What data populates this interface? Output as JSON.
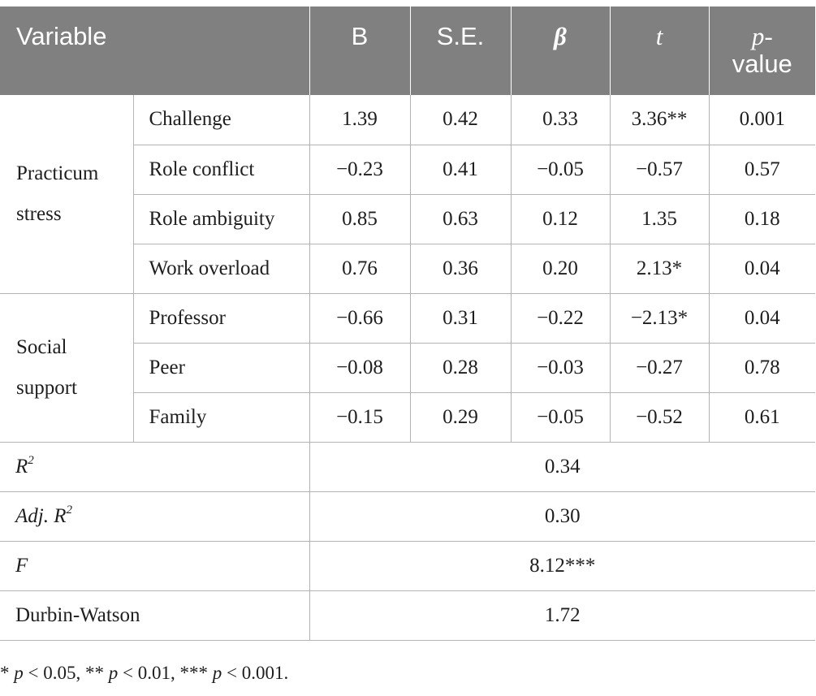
{
  "headers": {
    "variable": "Variable",
    "b": "B",
    "se": "S.E.",
    "beta": "β",
    "t": "t",
    "p_line1": "p-",
    "p_line2": "value"
  },
  "groups": [
    {
      "name_line1": "Practicum",
      "name_line2": "stress"
    },
    {
      "name_line1": "Social",
      "name_line2": "support"
    }
  ],
  "rows": [
    {
      "variable": "Challenge",
      "b": "1.39",
      "se": "0.42",
      "beta": "0.33",
      "t": "3.36**",
      "p": "0.001"
    },
    {
      "variable": "Role conflict",
      "b": "−0.23",
      "se": "0.41",
      "beta": "−0.05",
      "t": "−0.57",
      "p": "0.57"
    },
    {
      "variable": "Role ambiguity",
      "b": "0.85",
      "se": "0.63",
      "beta": "0.12",
      "t": "1.35",
      "p": "0.18"
    },
    {
      "variable": "Work overload",
      "b": "0.76",
      "se": "0.36",
      "beta": "0.20",
      "t": "2.13*",
      "p": "0.04"
    },
    {
      "variable": "Professor",
      "b": "−0.66",
      "se": "0.31",
      "beta": "−0.22",
      "t": "−2.13*",
      "p": "0.04"
    },
    {
      "variable": "Peer",
      "b": "−0.08",
      "se": "0.28",
      "beta": "−0.03",
      "t": "−0.27",
      "p": "0.78"
    },
    {
      "variable": "Family",
      "b": "−0.15",
      "se": "0.29",
      "beta": "−0.05",
      "t": "−0.52",
      "p": "0.61"
    }
  ],
  "stats": {
    "r2_label_base": "R",
    "r2_label_sup": "2",
    "r2_value": "0.34",
    "adj_r2_label_base": "Adj. R",
    "adj_r2_label_sup": "2",
    "adj_r2_value": "0.30",
    "f_label": "F",
    "f_value": "8.12***",
    "dw_label": "Durbin-Watson",
    "dw_value": "1.72"
  },
  "footnote": {
    "s1": "* ",
    "p1": "p",
    "t1": " < 0.05, ** ",
    "p2": "p",
    "t2": " < 0.01, *** ",
    "p3": "p",
    "t3": " < 0.001."
  }
}
